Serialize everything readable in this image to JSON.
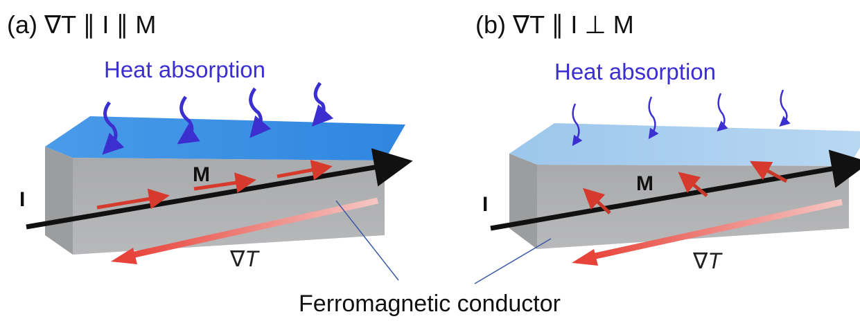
{
  "panels": [
    {
      "title": "(a) ∇T ∥ I ∥ M",
      "heat_label": "Heat absorption",
      "magnetization_label": "M",
      "current_label": "I",
      "gradient_label": "∇T"
    },
    {
      "title": "(b) ∇T ∥ I ⊥ M",
      "heat_label": "Heat absorption",
      "magnetization_label": "M",
      "current_label": "I",
      "gradient_label": "∇T"
    }
  ],
  "caption": "Ferromagnetic conductor"
}
